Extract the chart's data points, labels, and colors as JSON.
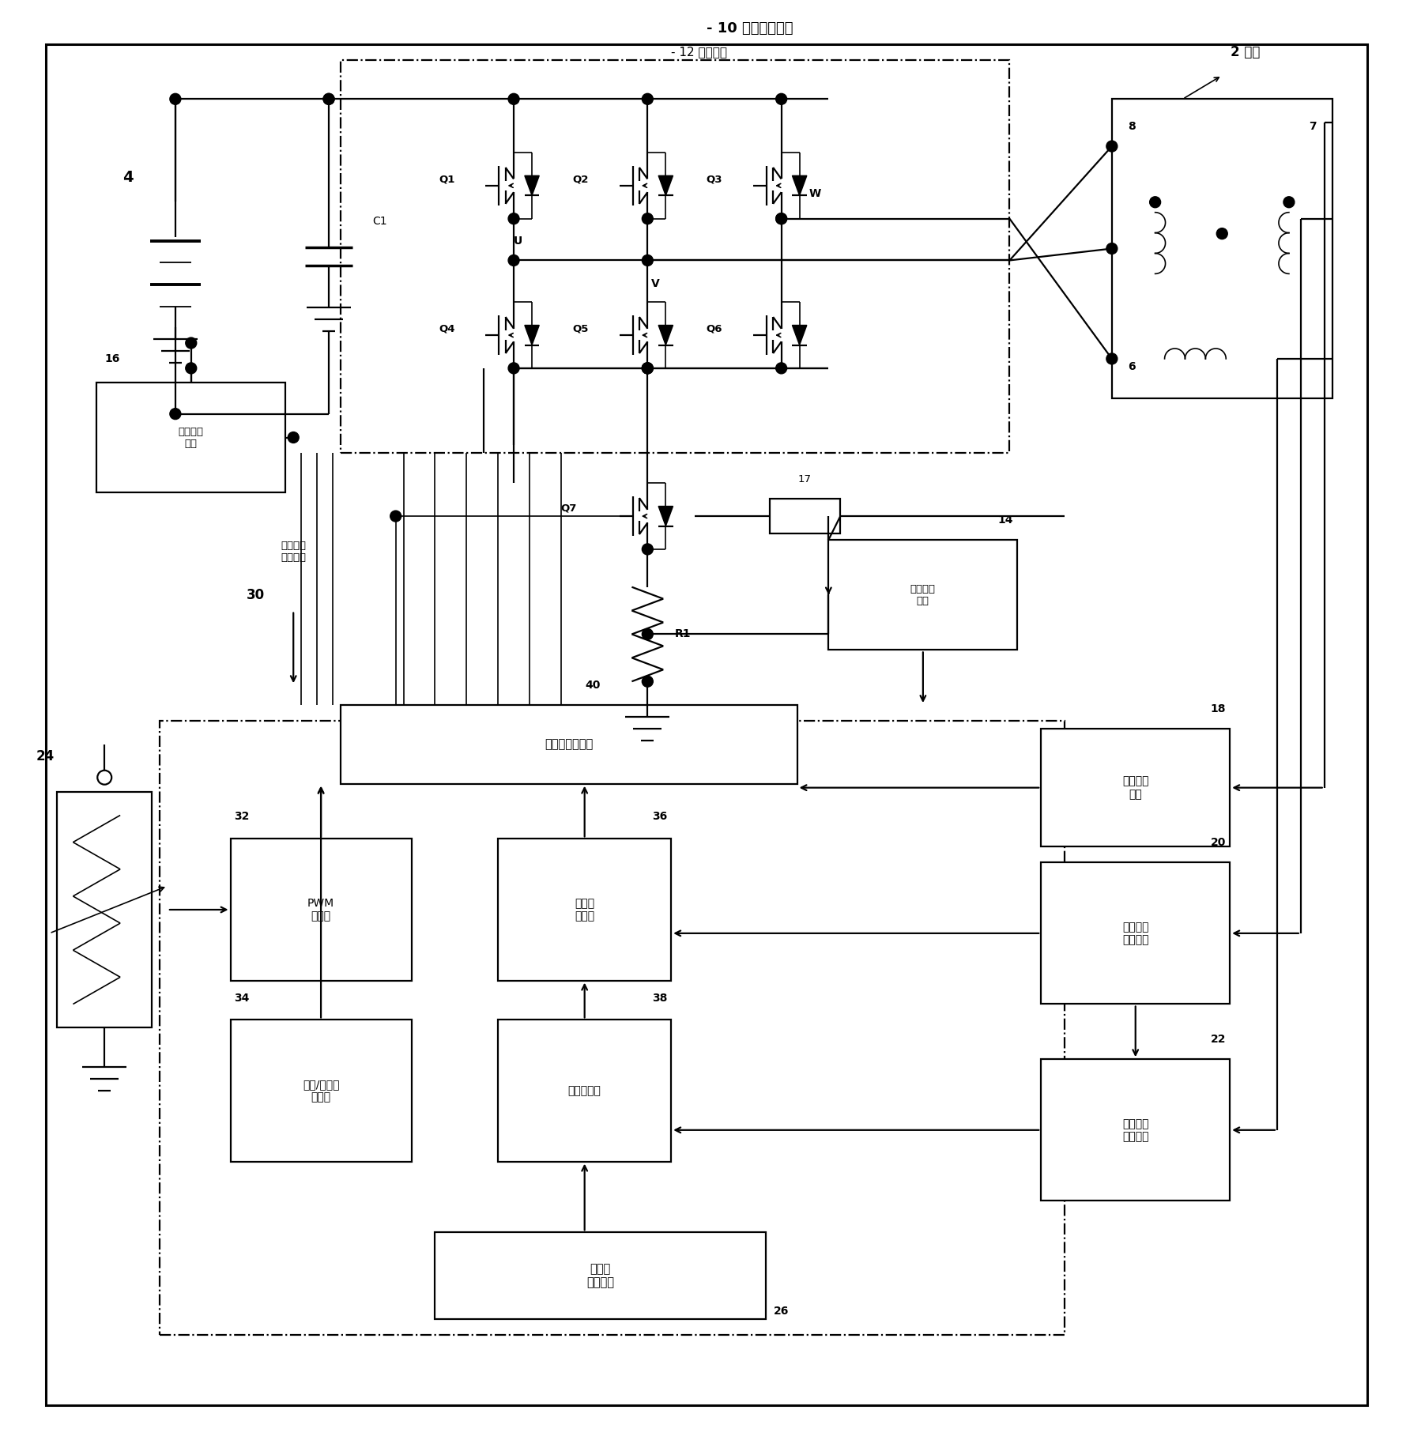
{
  "bg_color": "#ffffff",
  "labels": {
    "motor_drive": "- 10 电机驱动装置",
    "switch_circuit": "- 12 开关电路",
    "motor_label": "2 电机",
    "bat_num": "4",
    "cap_label": "C1",
    "q1": "Q1",
    "q2": "Q2",
    "q3": "Q3",
    "q4": "Q4",
    "q5": "Q5",
    "q6": "Q6",
    "q7": "Q7",
    "r1": "R1",
    "u_label": "U",
    "v_label": "V",
    "w_label": "W",
    "num6": "6",
    "num7": "7",
    "num8": "8",
    "num17": "17",
    "num14": "14",
    "num16": "16",
    "num18": "18",
    "num20": "20",
    "num22": "22",
    "num24": "24",
    "num26": "26",
    "num30": "30",
    "num32": "32",
    "num34": "34",
    "num36": "36",
    "num38": "38",
    "num40": "40",
    "voltage_detect": "电压检测\n电路",
    "current_detect": "电流检测\n电路",
    "temp_detect": "温度检测\n电路",
    "rotation_detect": "旋转位置\n检测电路",
    "rotation_speed": "旋转速度\n计算电路",
    "drive_signal": "驱动信号生成部",
    "pwm_gen": "PWM\n生成部",
    "angle_gen": "进角/通电角\n生成部",
    "overcurrent": "过电流\n判定部",
    "brake_ctrl": "制动控制部",
    "brake_switch": "制动力\n切换开关",
    "control_circuit": "控制电路\n（微机）"
  }
}
